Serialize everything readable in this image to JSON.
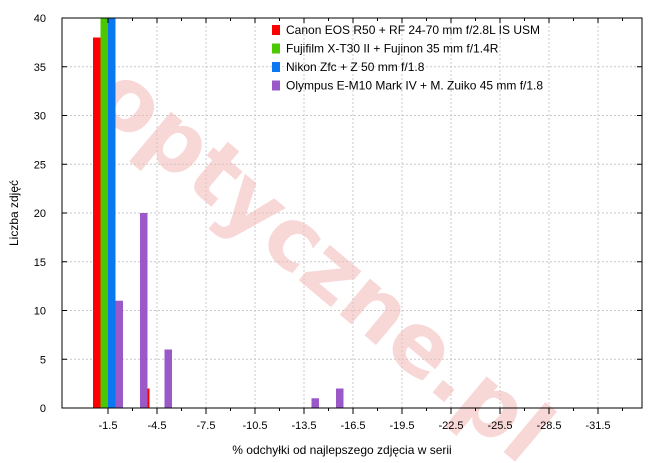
{
  "watermark": "optyczne.pl",
  "chart_data": {
    "type": "bar",
    "xlabel": "% odchyłki od najlepszego zdjęcia w serii",
    "ylabel": "Liczba zdjęć",
    "ylim": [
      0,
      40
    ],
    "yticks": [
      0,
      5,
      10,
      15,
      20,
      25,
      30,
      35,
      40
    ],
    "categories": [
      "-1.5",
      "-3",
      "-4.5",
      "-6",
      "-7.5",
      "-9",
      "-10.5",
      "-12",
      "-13.5",
      "-15",
      "-16.5",
      "-18",
      "-19.5",
      "-21",
      "-22.5",
      "-24",
      "-25.5",
      "-27",
      "-28.5",
      "-30",
      "-31.5",
      "-33"
    ],
    "category_labels": [
      "-1.5",
      "",
      "-4.5",
      "",
      "-7.5",
      "",
      "-10.5",
      "",
      "-13.5",
      "",
      "-16.5",
      "",
      "-19.5",
      "",
      "-22.5",
      "",
      "-25.5",
      "",
      "-28.5",
      "",
      "-31.5",
      ""
    ],
    "grid": true,
    "legend_position": "top-right",
    "series": [
      {
        "name": "Canon EOS R50 + RF 24-70 mm f/2.8L IS USM",
        "color": "#ff0000",
        "values": [
          38,
          0,
          2,
          0,
          0,
          0,
          0,
          0,
          0,
          0,
          0,
          0,
          0,
          0,
          0,
          0,
          0,
          0,
          0,
          0,
          0,
          0
        ]
      },
      {
        "name": "Fujifilm X-T30 II + Fujinon 35 mm f/1.4R",
        "color": "#4cc800",
        "values": [
          40,
          0,
          0,
          0,
          0,
          0,
          0,
          0,
          0,
          0,
          0,
          0,
          0,
          0,
          0,
          0,
          0,
          0,
          0,
          0,
          0,
          0
        ]
      },
      {
        "name": "Nikon Zfc + Z 50 mm f/1.8",
        "color": "#0a78f0",
        "values": [
          40,
          0,
          0,
          0,
          0,
          0,
          0,
          0,
          0,
          0,
          0,
          0,
          0,
          0,
          0,
          0,
          0,
          0,
          0,
          0,
          0,
          0
        ]
      },
      {
        "name": "Olympus E-M10 Mark IV + M. Zuiko 45 mm f/1.8",
        "color": "#9b59c8",
        "values": [
          11,
          20,
          6,
          0,
          0,
          0,
          0,
          0,
          1,
          2,
          0,
          0,
          0,
          0,
          0,
          0,
          0,
          0,
          0,
          0,
          0,
          0
        ]
      }
    ]
  }
}
